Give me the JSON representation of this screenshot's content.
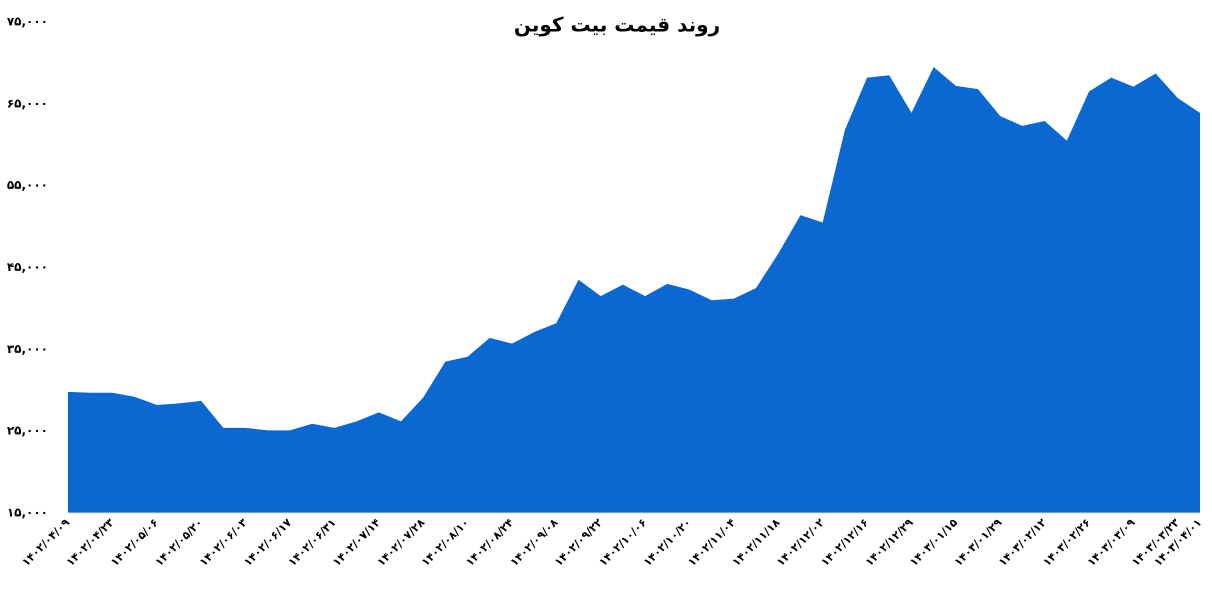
{
  "chart_data": {
    "type": "area",
    "title": "روند قیمت بیت کوین",
    "categories": [
      "۱۴۰۲/۰۴/۰۹",
      null,
      "۱۴۰۲/۰۴/۲۳",
      null,
      "۱۴۰۲/۰۵/۰۶",
      null,
      "۱۴۰۲/۰۵/۲۰",
      null,
      "۱۴۰۲/۰۶/۰۳",
      null,
      "۱۴۰۲/۰۶/۱۷",
      null,
      "۱۴۰۲/۰۶/۳۱",
      null,
      "۱۴۰۲/۰۷/۱۴",
      null,
      "۱۴۰۲/۰۷/۲۸",
      null,
      "۱۴۰۲/۰۸/۱۰",
      null,
      "۱۴۰۲/۰۸/۲۴",
      null,
      "۱۴۰۲/۰۹/۰۸",
      null,
      "۱۴۰۲/۰۹/۲۲",
      null,
      "۱۴۰۲/۱۰/۰۶",
      null,
      "۱۴۰۲/۱۰/۲۰",
      null,
      "۱۴۰۲/۱۱/۰۴",
      null,
      "۱۴۰۲/۱۱/۱۸",
      null,
      "۱۴۰۲/۱۲/۰۲",
      null,
      "۱۴۰۲/۱۲/۱۶",
      null,
      "۱۴۰۲/۱۲/۲۹",
      null,
      "۱۴۰۳/۰۱/۱۵",
      null,
      "۱۴۰۳/۰۱/۲۹",
      null,
      "۱۴۰۳/۰۲/۱۲",
      null,
      "۱۴۰۳/۰۲/۲۶",
      null,
      "۱۴۰۳/۰۳/۰۹",
      null,
      "۱۴۰۳/۰۳/۲۳",
      "۱۴۰۳/۰۴/۰۱"
    ],
    "values": [
      29800,
      29700,
      29700,
      29200,
      28200,
      28400,
      28700,
      25400,
      25400,
      25100,
      25100,
      25900,
      25400,
      26200,
      27300,
      26200,
      29100,
      33500,
      34100,
      36400,
      35700,
      37100,
      38200,
      43500,
      41500,
      42900,
      41500,
      43000,
      42300,
      41000,
      41200,
      42500,
      46700,
      51400,
      50500,
      61800,
      68200,
      68500,
      63900,
      69500,
      67200,
      66800,
      63500,
      62300,
      62900,
      60500,
      66500,
      68200,
      67100,
      68700,
      65700,
      63900
    ],
    "color": "#0a68d0",
    "ylim": [
      15000,
      75000
    ],
    "yticks": [
      {
        "value": 15000,
        "label": "۱۵,۰۰۰"
      },
      {
        "value": 25000,
        "label": "۲۵,۰۰۰"
      },
      {
        "value": 35000,
        "label": "۳۵,۰۰۰"
      },
      {
        "value": 45000,
        "label": "۴۵,۰۰۰"
      },
      {
        "value": 55000,
        "label": "۵۵,۰۰۰"
      },
      {
        "value": 65000,
        "label": "۶۵,۰۰۰"
      },
      {
        "value": 75000,
        "label": "۷۵,۰۰۰"
      }
    ],
    "grid": false
  }
}
